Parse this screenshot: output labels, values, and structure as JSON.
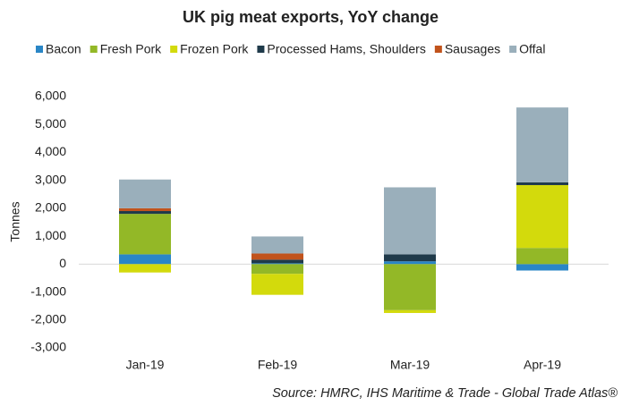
{
  "chart_data": {
    "type": "stacked_bar",
    "title": "UK pig meat exports, YoY change",
    "y_label": "Tonnes",
    "source": "Source: HMRC, IHS Maritime & Trade - Global Trade Atlas®",
    "categories": [
      "Jan-19",
      "Feb-19",
      "Mar-19",
      "Apr-19"
    ],
    "series": [
      {
        "name": "Bacon",
        "color": "#2a86c6",
        "values": [
          350,
          30,
          100,
          -230
        ]
      },
      {
        "name": "Fresh Pork",
        "color": "#93b827",
        "values": [
          1450,
          -350,
          -1650,
          580
        ]
      },
      {
        "name": "Frozen Pork",
        "color": "#d3da0c",
        "values": [
          -300,
          -750,
          -100,
          2250
        ]
      },
      {
        "name": "Processed Hams, Shoulders",
        "color": "#1f3a4a",
        "values": [
          100,
          130,
          250,
          100
        ]
      },
      {
        "name": "Sausages",
        "color": "#c1531c",
        "values": [
          100,
          220,
          0,
          0
        ]
      },
      {
        "name": "Offal",
        "color": "#9aafbb",
        "values": [
          1030,
          610,
          2400,
          2680
        ]
      }
    ],
    "ylim": [
      -3000,
      6000
    ],
    "yticks": [
      {
        "value": -3000,
        "label": "-3,000"
      },
      {
        "value": -2000,
        "label": "-2,000"
      },
      {
        "value": -1000,
        "label": "-1,000"
      },
      0,
      {
        "value": 1000,
        "label": "1,000"
      },
      {
        "value": 2000,
        "label": "2,000"
      },
      {
        "value": 3000,
        "label": "3,000"
      },
      {
        "value": 4000,
        "label": "4,000"
      },
      {
        "value": 5000,
        "label": "5,000"
      },
      {
        "value": 6000,
        "label": "6,000"
      }
    ],
    "legend": "top"
  }
}
